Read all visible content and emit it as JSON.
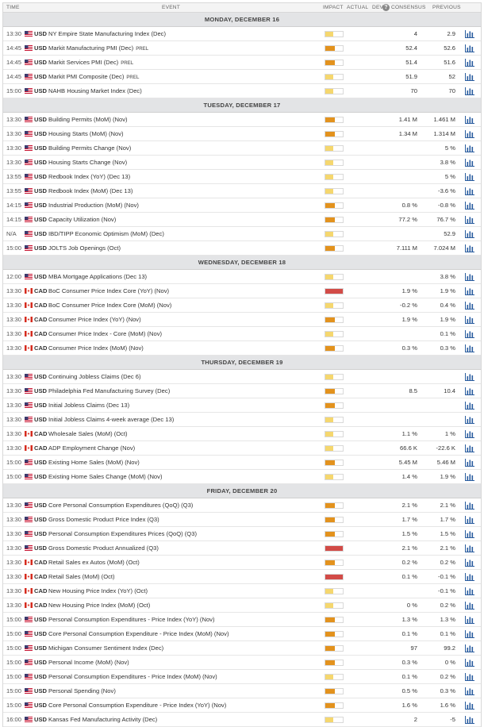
{
  "header": {
    "time": "TIME",
    "event": "EVENT",
    "impact": "IMPACT",
    "actual": "ACTUAL",
    "dev": "DEV",
    "consensus": "CONSENSUS",
    "previous": "PREVIOUS"
  },
  "impact_colors": {
    "low": "#f5d76e",
    "medium": "#e3921d",
    "high": "#d24b47"
  },
  "flag_icons": {
    "USD": "us-flag-icon",
    "CAD": "canada-flag-icon"
  },
  "chart_icon": "bar-chart-icon",
  "days": [
    {
      "label": "MONDAY, DECEMBER 16",
      "events": [
        {
          "time": "13:30",
          "currency": "USD",
          "name": "NY Empire State Manufacturing Index (Dec)",
          "impact": "low",
          "actual": "",
          "consensus": "4",
          "previous": "2.9"
        },
        {
          "time": "14:45",
          "currency": "USD",
          "name": "Markit Manufacturing PMI (Dec)",
          "tag": "PREL",
          "impact": "medium",
          "actual": "",
          "consensus": "52.4",
          "previous": "52.6"
        },
        {
          "time": "14:45",
          "currency": "USD",
          "name": "Markit Services PMI (Dec)",
          "tag": "PREL",
          "impact": "medium",
          "actual": "",
          "consensus": "51.4",
          "previous": "51.6"
        },
        {
          "time": "14:45",
          "currency": "USD",
          "name": "Markit PMI Composite (Dec)",
          "tag": "PREL",
          "impact": "low",
          "actual": "",
          "consensus": "51.9",
          "previous": "52"
        },
        {
          "time": "15:00",
          "currency": "USD",
          "name": "NAHB Housing Market Index (Dec)",
          "impact": "low",
          "actual": "",
          "consensus": "70",
          "previous": "70"
        }
      ]
    },
    {
      "label": "TUESDAY, DECEMBER 17",
      "events": [
        {
          "time": "13:30",
          "currency": "USD",
          "name": "Building Permits (MoM) (Nov)",
          "impact": "medium",
          "actual": "",
          "consensus": "1.41 M",
          "previous": "1.461 M"
        },
        {
          "time": "13:30",
          "currency": "USD",
          "name": "Housing Starts (MoM) (Nov)",
          "impact": "medium",
          "actual": "",
          "consensus": "1.34 M",
          "previous": "1.314 M"
        },
        {
          "time": "13:30",
          "currency": "USD",
          "name": "Building Permits Change (Nov)",
          "impact": "low",
          "actual": "",
          "consensus": "",
          "previous": "5 %"
        },
        {
          "time": "13:30",
          "currency": "USD",
          "name": "Housing Starts Change (Nov)",
          "impact": "low",
          "actual": "",
          "consensus": "",
          "previous": "3.8 %"
        },
        {
          "time": "13:55",
          "currency": "USD",
          "name": "Redbook Index (YoY) (Dec 13)",
          "impact": "low",
          "actual": "",
          "consensus": "",
          "previous": "5 %"
        },
        {
          "time": "13:55",
          "currency": "USD",
          "name": "Redbook Index (MoM) (Dec 13)",
          "impact": "low",
          "actual": "",
          "consensus": "",
          "previous": "-3.6 %"
        },
        {
          "time": "14:15",
          "currency": "USD",
          "name": "Industrial Production (MoM) (Nov)",
          "impact": "medium",
          "actual": "",
          "consensus": "0.8 %",
          "previous": "-0.8 %"
        },
        {
          "time": "14:15",
          "currency": "USD",
          "name": "Capacity Utilization (Nov)",
          "impact": "medium",
          "actual": "",
          "consensus": "77.2 %",
          "previous": "76.7 %"
        },
        {
          "time": "N/A",
          "currency": "USD",
          "name": "IBD/TIPP Economic Optimism (MoM) (Dec)",
          "impact": "low",
          "actual": "",
          "consensus": "",
          "previous": "52.9"
        },
        {
          "time": "15:00",
          "currency": "USD",
          "name": "JOLTS Job Openings (Oct)",
          "impact": "medium",
          "actual": "",
          "consensus": "7.111 M",
          "previous": "7.024 M"
        }
      ]
    },
    {
      "label": "WEDNESDAY, DECEMBER 18",
      "events": [
        {
          "time": "12:00",
          "currency": "USD",
          "name": "MBA Mortgage Applications (Dec 13)",
          "impact": "low",
          "actual": "",
          "consensus": "",
          "previous": "3.8 %"
        },
        {
          "time": "13:30",
          "currency": "CAD",
          "name": "BoC Consumer Price Index Core (YoY) (Nov)",
          "impact": "high",
          "actual": "",
          "consensus": "1.9 %",
          "previous": "1.9 %"
        },
        {
          "time": "13:30",
          "currency": "CAD",
          "name": "BoC Consumer Price Index Core (MoM) (Nov)",
          "impact": "low",
          "actual": "",
          "consensus": "-0.2 %",
          "previous": "0.4 %"
        },
        {
          "time": "13:30",
          "currency": "CAD",
          "name": "Consumer Price Index (YoY) (Nov)",
          "impact": "medium",
          "actual": "",
          "consensus": "1.9 %",
          "previous": "1.9 %"
        },
        {
          "time": "13:30",
          "currency": "CAD",
          "name": "Consumer Price Index - Core (MoM) (Nov)",
          "impact": "low",
          "actual": "",
          "consensus": "",
          "previous": "0.1 %"
        },
        {
          "time": "13:30",
          "currency": "CAD",
          "name": "Consumer Price Index (MoM) (Nov)",
          "impact": "medium",
          "actual": "",
          "consensus": "0.3 %",
          "previous": "0.3 %"
        }
      ]
    },
    {
      "label": "THURSDAY, DECEMBER 19",
      "events": [
        {
          "time": "13:30",
          "currency": "USD",
          "name": "Continuing Jobless Claims (Dec 6)",
          "impact": "low",
          "actual": "",
          "consensus": "",
          "previous": ""
        },
        {
          "time": "13:30",
          "currency": "USD",
          "name": "Philadelphia Fed Manufacturing Survey (Dec)",
          "impact": "medium",
          "actual": "",
          "consensus": "8.5",
          "previous": "10.4"
        },
        {
          "time": "13:30",
          "currency": "USD",
          "name": "Initial Jobless Claims (Dec 13)",
          "impact": "medium",
          "actual": "",
          "consensus": "",
          "previous": ""
        },
        {
          "time": "13:30",
          "currency": "USD",
          "name": "Initial Jobless Claims 4-week average (Dec 13)",
          "impact": "low",
          "actual": "",
          "consensus": "",
          "previous": ""
        },
        {
          "time": "13:30",
          "currency": "CAD",
          "name": "Wholesale Sales (MoM) (Oct)",
          "impact": "low",
          "actual": "",
          "consensus": "1.1 %",
          "previous": "1 %"
        },
        {
          "time": "13:30",
          "currency": "CAD",
          "name": "ADP Employment Change (Nov)",
          "impact": "low",
          "actual": "",
          "consensus": "66.6 K",
          "previous": "-22.6 K"
        },
        {
          "time": "15:00",
          "currency": "USD",
          "name": "Existing Home Sales (MoM) (Nov)",
          "impact": "medium",
          "actual": "",
          "consensus": "5.45 M",
          "previous": "5.46 M"
        },
        {
          "time": "15:00",
          "currency": "USD",
          "name": "Existing Home Sales Change (MoM) (Nov)",
          "impact": "low",
          "actual": "",
          "consensus": "1.4 %",
          "previous": "1.9 %"
        }
      ]
    },
    {
      "label": "FRIDAY, DECEMBER 20",
      "events": [
        {
          "time": "13:30",
          "currency": "USD",
          "name": "Core Personal Consumption Expenditures (QoQ) (Q3)",
          "impact": "medium",
          "actual": "",
          "consensus": "2.1 %",
          "previous": "2.1 %"
        },
        {
          "time": "13:30",
          "currency": "USD",
          "name": "Gross Domestic Product Price Index (Q3)",
          "impact": "medium",
          "actual": "",
          "consensus": "1.7 %",
          "previous": "1.7 %"
        },
        {
          "time": "13:30",
          "currency": "USD",
          "name": "Personal Consumption Expenditures Prices (QoQ) (Q3)",
          "impact": "medium",
          "actual": "",
          "consensus": "1.5 %",
          "previous": "1.5 %"
        },
        {
          "time": "13:30",
          "currency": "USD",
          "name": "Gross Domestic Product Annualized (Q3)",
          "impact": "high",
          "actual": "",
          "consensus": "2.1 %",
          "previous": "2.1 %"
        },
        {
          "time": "13:30",
          "currency": "CAD",
          "name": "Retail Sales ex Autos (MoM) (Oct)",
          "impact": "medium",
          "actual": "",
          "consensus": "0.2 %",
          "previous": "0.2 %"
        },
        {
          "time": "13:30",
          "currency": "CAD",
          "name": "Retail Sales (MoM) (Oct)",
          "impact": "high",
          "actual": "",
          "consensus": "0.1 %",
          "previous": "-0.1 %"
        },
        {
          "time": "13:30",
          "currency": "CAD",
          "name": "New Housing Price Index (YoY) (Oct)",
          "impact": "low",
          "actual": "",
          "consensus": "",
          "previous": "-0.1 %"
        },
        {
          "time": "13:30",
          "currency": "CAD",
          "name": "New Housing Price Index (MoM) (Oct)",
          "impact": "low",
          "actual": "",
          "consensus": "0 %",
          "previous": "0.2 %"
        },
        {
          "time": "15:00",
          "currency": "USD",
          "name": "Personal Consumption Expenditures - Price Index (YoY) (Nov)",
          "impact": "medium",
          "actual": "",
          "consensus": "1.3 %",
          "previous": "1.3 %"
        },
        {
          "time": "15:00",
          "currency": "USD",
          "name": "Core Personal Consumption Expenditure - Price Index (MoM) (Nov)",
          "impact": "medium",
          "actual": "",
          "consensus": "0.1 %",
          "previous": "0.1 %"
        },
        {
          "time": "15:00",
          "currency": "USD",
          "name": "Michigan Consumer Sentiment Index (Dec)",
          "impact": "medium",
          "actual": "",
          "consensus": "97",
          "previous": "99.2"
        },
        {
          "time": "15:00",
          "currency": "USD",
          "name": "Personal Income (MoM) (Nov)",
          "impact": "medium",
          "actual": "",
          "consensus": "0.3 %",
          "previous": "0 %"
        },
        {
          "time": "15:00",
          "currency": "USD",
          "name": "Personal Consumption Expenditures - Price Index (MoM) (Nov)",
          "impact": "low",
          "actual": "",
          "consensus": "0.1 %",
          "previous": "0.2 %"
        },
        {
          "time": "15:00",
          "currency": "USD",
          "name": "Personal Spending (Nov)",
          "impact": "medium",
          "actual": "",
          "consensus": "0.5 %",
          "previous": "0.3 %"
        },
        {
          "time": "15:00",
          "currency": "USD",
          "name": "Core Personal Consumption Expenditure - Price Index (YoY) (Nov)",
          "impact": "medium",
          "actual": "",
          "consensus": "1.6 %",
          "previous": "1.6 %"
        },
        {
          "time": "16:00",
          "currency": "USD",
          "name": "Kansas Fed Manufacturing Activity (Dec)",
          "impact": "low",
          "actual": "",
          "consensus": "2",
          "previous": "-5"
        }
      ]
    }
  ]
}
